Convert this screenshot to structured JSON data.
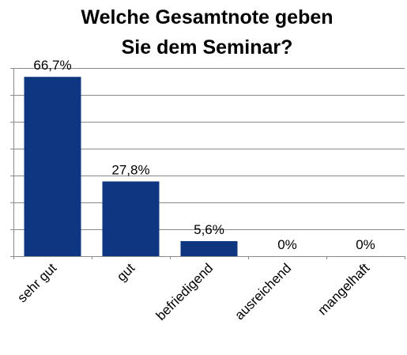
{
  "chart_data": {
    "type": "bar",
    "title_lines": [
      "Welche Gesamtnote geben",
      "Sie dem Seminar?"
    ],
    "categories": [
      "sehr gut",
      "gut",
      "befriedigend",
      "ausreichend",
      "mangelhaft"
    ],
    "values": [
      66.7,
      27.8,
      5.6,
      0,
      0
    ],
    "value_labels": [
      "66,7%",
      "27,8%",
      "5,6%",
      "0%",
      "0%"
    ],
    "unit": "%",
    "ylim": [
      0,
      70
    ],
    "y_grid_step": 10,
    "grid": true,
    "y_tick_labels_shown": false,
    "legend": "none",
    "bar_color": "#0F3681"
  }
}
